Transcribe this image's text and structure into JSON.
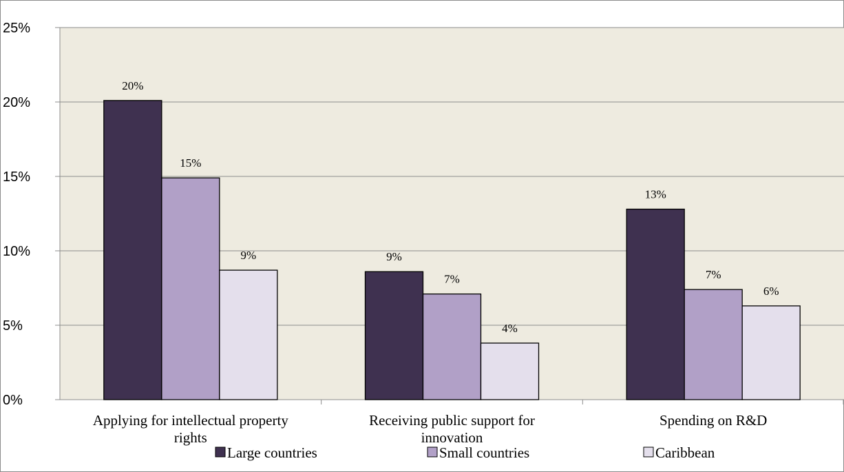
{
  "chart_data": {
    "type": "bar",
    "title": "",
    "xlabel": "",
    "ylabel": "",
    "ylim": [
      0,
      25
    ],
    "yticks": [
      "0%",
      "5%",
      "10%",
      "15%",
      "20%",
      "25%"
    ],
    "categories": [
      [
        "Applying for intellectual property",
        "rights"
      ],
      [
        "Receiving public support for",
        "innovation"
      ],
      [
        "Spending on R&D"
      ]
    ],
    "series": [
      {
        "name": "Large countries",
        "color": "#3f3150",
        "values": [
          20.1,
          8.6,
          12.8
        ],
        "labels": [
          "20%",
          "9%",
          "13%"
        ]
      },
      {
        "name": "Small countries",
        "color": "#b1a0c7",
        "values": [
          14.9,
          7.1,
          7.4
        ],
        "labels": [
          "15%",
          "7%",
          "7%"
        ]
      },
      {
        "name": "Caribbean",
        "color": "#e4dfec",
        "values": [
          8.7,
          3.8,
          6.3
        ],
        "labels": [
          "9%",
          "4%",
          "6%"
        ]
      }
    ],
    "grid": true,
    "plot_background": "#eeebe0",
    "legend_position": "bottom"
  }
}
